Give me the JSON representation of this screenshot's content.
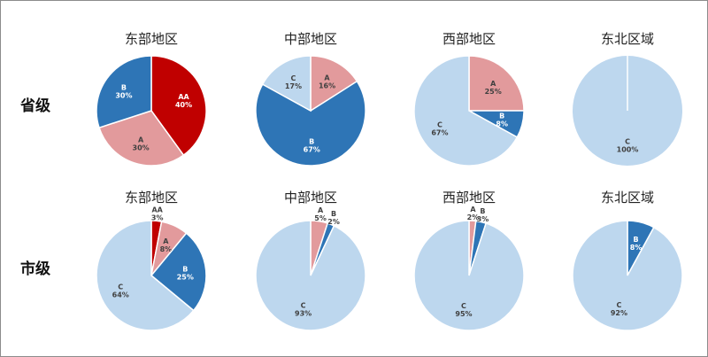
{
  "chart_data": [
    {
      "type": "pie",
      "row": "省级",
      "title": "东部地区",
      "categories": [
        "AA",
        "A",
        "B"
      ],
      "values": [
        40,
        30,
        30
      ]
    },
    {
      "type": "pie",
      "row": "省级",
      "title": "中部地区",
      "categories": [
        "A",
        "B",
        "C"
      ],
      "values": [
        16,
        67,
        17
      ]
    },
    {
      "type": "pie",
      "row": "省级",
      "title": "西部地区",
      "categories": [
        "A",
        "B",
        "C"
      ],
      "values": [
        25,
        8,
        67
      ]
    },
    {
      "type": "pie",
      "row": "省级",
      "title": "东北区域",
      "categories": [
        "C"
      ],
      "values": [
        100
      ]
    },
    {
      "type": "pie",
      "row": "市级",
      "title": "东部地区",
      "categories": [
        "AA",
        "A",
        "B",
        "C"
      ],
      "values": [
        3,
        8,
        25,
        64
      ]
    },
    {
      "type": "pie",
      "row": "市级",
      "title": "中部地区",
      "categories": [
        "A",
        "B",
        "C"
      ],
      "values": [
        5,
        2,
        93
      ]
    },
    {
      "type": "pie",
      "row": "市级",
      "title": "西部地区",
      "categories": [
        "A",
        "B",
        "C"
      ],
      "values": [
        2,
        3,
        95
      ]
    },
    {
      "type": "pie",
      "row": "市级",
      "title": "东北区域",
      "categories": [
        "B",
        "C"
      ],
      "values": [
        8,
        92
      ]
    }
  ],
  "rows": [
    "省级",
    "市级"
  ],
  "colors": {
    "AA": "#C00000",
    "A": "#E29A9C",
    "B": "#2E75B6",
    "C": "#BDD7EE"
  }
}
